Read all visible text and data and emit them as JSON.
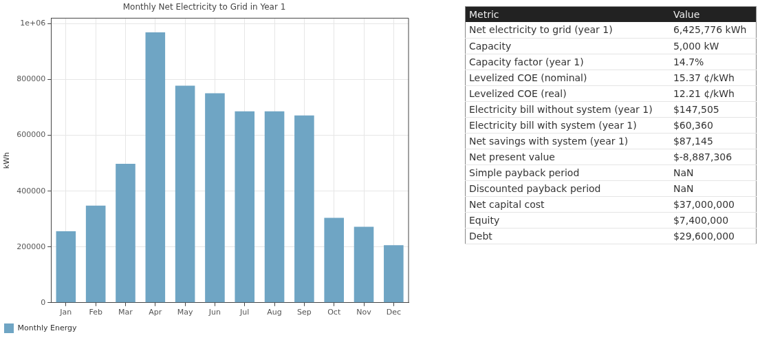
{
  "chart_data": [
    {
      "type": "bar",
      "title": "Monthly Net Electricity to Grid in Year 1",
      "ylabel": "kWh",
      "categories": [
        "Jan",
        "Feb",
        "Mar",
        "Apr",
        "May",
        "Jun",
        "Jul",
        "Aug",
        "Sep",
        "Oct",
        "Nov",
        "Dec"
      ],
      "series": [
        {
          "name": "Monthly Energy",
          "color": "#6fa5c4",
          "values": [
            256000,
            348000,
            498000,
            969000,
            778000,
            751000,
            686000,
            686000,
            671000,
            304000,
            272000,
            206000
          ]
        }
      ],
      "ylim": [
        0,
        1020000
      ],
      "yticks": [
        0,
        200000,
        400000,
        600000,
        800000,
        {
          "value": 1000000,
          "label": "1e+06"
        }
      ],
      "grid": true,
      "legend": "bottom left"
    },
    {
      "type": "other",
      "annotations": [
        "Metric",
        "Value",
        "Net electricity to grid (year 1)",
        "6,425,776 kWh",
        "Capacity",
        "5,000 kW",
        "Capacity factor (year 1)",
        "14.7%",
        "Levelized COE (nominal)",
        "15.37 ¢/kWh",
        "Levelized COE (real)",
        "12.21 ¢/kWh",
        "Electricity bill without system (year 1)",
        "$147,505",
        "Electricity bill with system (year 1)",
        "$60,360",
        "Net savings with system (year 1)",
        "$87,145",
        "Net present value",
        "$-8,887,306",
        "Simple payback period",
        "NaN",
        "Discounted payback period",
        "NaN",
        "Net capital cost",
        "$37,000,000",
        "Equity",
        "$7,400,000",
        "Debt",
        "$29,600,000"
      ]
    }
  ]
}
